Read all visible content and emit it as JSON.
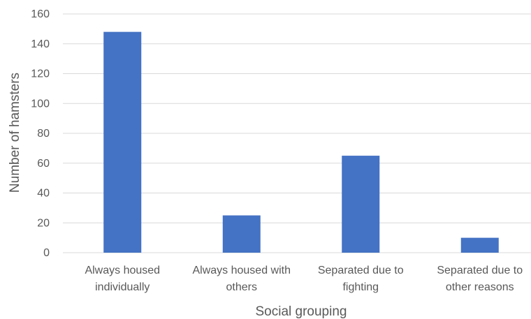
{
  "chart_data": {
    "type": "bar",
    "categories": [
      [
        "Always housed",
        "individually"
      ],
      [
        "Always housed with",
        "others"
      ],
      [
        "Separated due to",
        "fighting"
      ],
      [
        "Separated due to",
        "other reasons"
      ]
    ],
    "values": [
      148,
      25,
      65,
      10
    ],
    "xlabel": "Social grouping",
    "ylabel": "Number of hamsters",
    "ylim": [
      0,
      160
    ],
    "yticks": [
      0,
      20,
      40,
      60,
      80,
      100,
      120,
      140,
      160
    ],
    "grid": true,
    "legend": "none",
    "bar_color": "#4472c4"
  }
}
